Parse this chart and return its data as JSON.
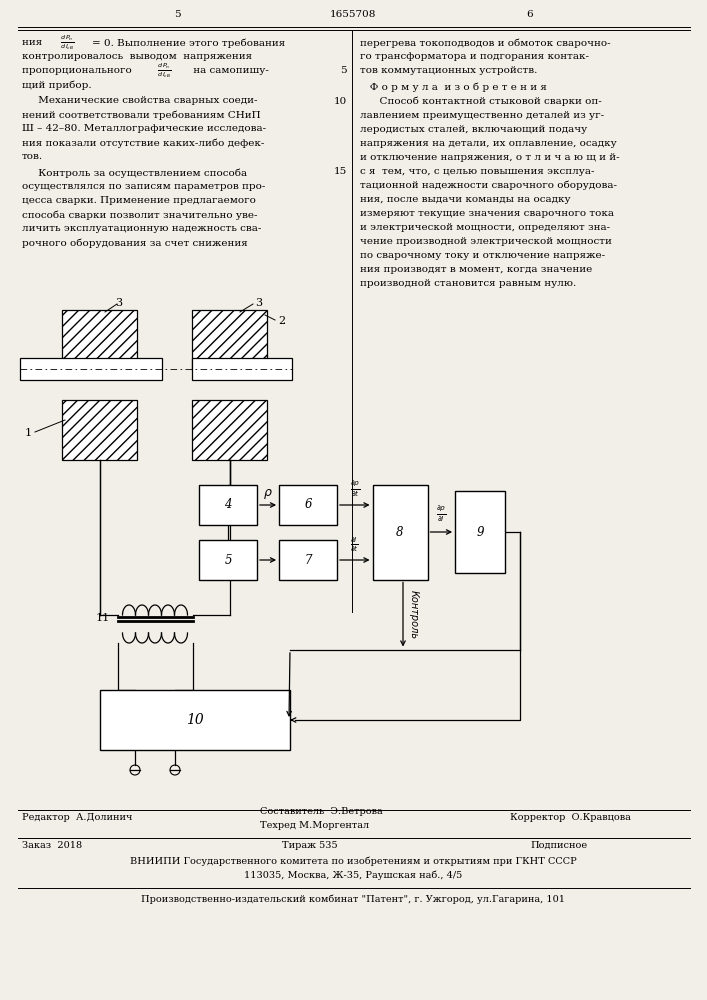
{
  "bg_color": "#f2efe8",
  "page_left": "5",
  "page_center": "1655708",
  "page_right": "6",
  "left_col": [
    "ния   dPn/dIcv = 0. Выполнение этого требования",
    "контролировалось  выводом  напряжения",
    "пропорционального   dPn/dIcv  на самопишу-",
    "щий прибор.",
    "     Механические свойства сварных соеди-",
    "нений соответствовали требованиям СНиП",
    "Ш – 42–80. Металлографические исследова-",
    "ния показали отсутствие каких-либо дефек-",
    "тов.",
    "     Контроль за осуществлением способа",
    "осуществлялся по записям параметров про-",
    "цесса сварки. Применение предлагаемого",
    "способа сварки позволит значительно уве-",
    "личить эксплуатационную надежность сва-",
    "рочного оборудования за счет снижения"
  ],
  "right_col": [
    "перегрева токоподводов и обмоток сварочно-",
    "го трансформатора и подгорания контак-",
    "тов коммутационных устройств.",
    "   Ф о р м у л а  и з о б р е т е н и я",
    "      Способ контактной стыковой сварки оп-",
    "лавлением преимущественно деталей из уг-",
    "леродистых сталей, включающий подачу",
    "напряжения на детали, их оплавление, осадку",
    "и отключение напряжения, о т л и ч а ю щ и й-",
    "с я  тем, что, с целью повышения эксплуа-",
    "тационной надежности сварочного оборудова-",
    "ния, после выдачи команды на осадку",
    "измеряют текущие значения сварочного тока",
    "и электрической мощности, определяют зна-",
    "чение производной электрической мощности",
    "по сварочному току и отключение напряже-",
    "ния производят в момент, когда значение",
    "производной становится равным нулю."
  ]
}
